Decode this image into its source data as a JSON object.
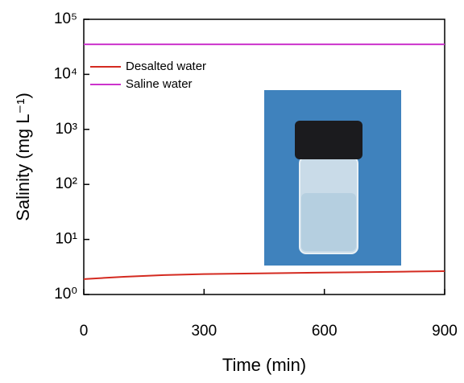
{
  "chart_data": {
    "type": "line",
    "x_label": "Time (min)",
    "y_label": "Salinity (mg L⁻¹)",
    "x": [
      0,
      50,
      100,
      200,
      300,
      400,
      500,
      600,
      700,
      800,
      900
    ],
    "series": [
      {
        "name": "Desalted water",
        "color": "#d42a20",
        "values": [
          1.9,
          2.0,
          2.1,
          2.25,
          2.35,
          2.4,
          2.45,
          2.5,
          2.55,
          2.6,
          2.65
        ]
      },
      {
        "name": "Saline water",
        "color": "#cc33cc",
        "values": [
          35000,
          35000,
          35000,
          35000,
          35000,
          35000,
          35000,
          35000,
          35000,
          35000,
          35000
        ]
      }
    ],
    "xlim": [
      0,
      900
    ],
    "xticks": [
      0,
      300,
      600,
      900
    ],
    "ylim": [
      1,
      100000
    ],
    "yscale": "log",
    "yticks": [
      {
        "value": 1,
        "label": "10⁰"
      },
      {
        "value": 10,
        "label": "10¹"
      },
      {
        "value": 100,
        "label": "10²"
      },
      {
        "value": 1000,
        "label": "10³"
      },
      {
        "value": 10000,
        "label": "10⁴"
      },
      {
        "value": 100000,
        "label": "10⁵"
      }
    ],
    "legend": "upper left"
  }
}
